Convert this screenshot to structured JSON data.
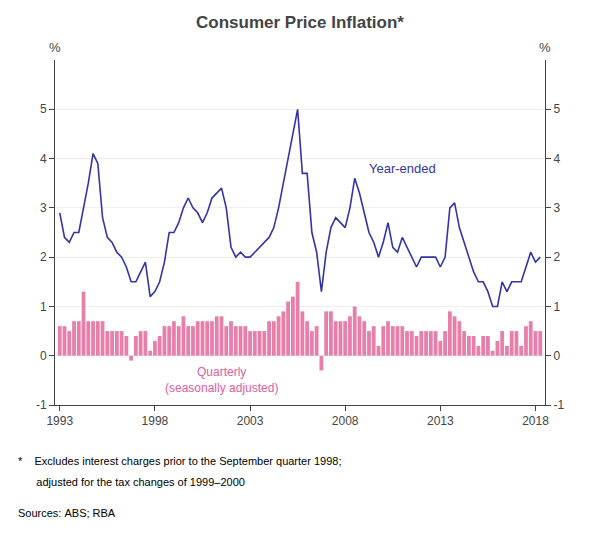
{
  "chart_data": {
    "type": "bar",
    "title": "Consumer Price Inflation*",
    "ylabel": "%",
    "y2label": "%",
    "annotations": [
      {
        "text": "Year-ended",
        "color": "#3333aa"
      },
      {
        "text": "Quarterly",
        "color": "#e060a0"
      },
      {
        "text": "(seasonally adjusted)",
        "color": "#e060a0"
      }
    ],
    "footnotes": [
      "*    Excludes interest charges prior to the September quarter 1998;",
      "      adjusted for the tax changes of 1999–2000",
      "Sources: ABS; RBA"
    ],
    "xlim": [
      1992.75,
      2018.5
    ],
    "xticks": [
      1993,
      1998,
      2003,
      2008,
      2013,
      2018
    ],
    "ylim": [
      -1,
      6
    ],
    "yticks": [
      -1,
      0,
      1,
      2,
      3,
      4,
      5
    ],
    "y2lim": [
      -1,
      6
    ],
    "y2ticks": [
      -1,
      0,
      1,
      2,
      3,
      4,
      5
    ],
    "grid": true,
    "x": [
      1993,
      1993.25,
      1993.5,
      1993.75,
      1994,
      1994.25,
      1994.5,
      1994.75,
      1995,
      1995.25,
      1995.5,
      1995.75,
      1996,
      1996.25,
      1996.5,
      1996.75,
      1997,
      1997.25,
      1997.5,
      1997.75,
      1998,
      1998.25,
      1998.5,
      1998.75,
      1999,
      1999.25,
      1999.5,
      1999.75,
      2000,
      2000.25,
      2000.5,
      2000.75,
      2001,
      2001.25,
      2001.5,
      2001.75,
      2002,
      2002.25,
      2002.5,
      2002.75,
      2003,
      2003.25,
      2003.5,
      2003.75,
      2004,
      2004.25,
      2004.5,
      2004.75,
      2005,
      2005.25,
      2005.5,
      2005.75,
      2006,
      2006.25,
      2006.5,
      2006.75,
      2007,
      2007.25,
      2007.5,
      2007.75,
      2008,
      2008.25,
      2008.5,
      2008.75,
      2009,
      2009.25,
      2009.5,
      2009.75,
      2010,
      2010.25,
      2010.5,
      2010.75,
      2011,
      2011.25,
      2011.5,
      2011.75,
      2012,
      2012.25,
      2012.5,
      2012.75,
      2013,
      2013.25,
      2013.5,
      2013.75,
      2014,
      2014.25,
      2014.5,
      2014.75,
      2015,
      2015.25,
      2015.5,
      2015.75,
      2016,
      2016.25,
      2016.5,
      2016.75,
      2017,
      2017.25,
      2017.5,
      2017.75,
      2018,
      2018.25
    ],
    "series": [
      {
        "type": "bar",
        "color": "#e87faa",
        "values": [
          0.6,
          0.6,
          0.5,
          0.7,
          0.7,
          1.3,
          0.7,
          0.7,
          0.7,
          0.7,
          0.5,
          0.5,
          0.5,
          0.5,
          0.4,
          -0.1,
          0.4,
          0.5,
          0.5,
          0.1,
          0.3,
          0.4,
          0.6,
          0.6,
          0.7,
          0.6,
          0.8,
          0.6,
          0.6,
          0.7,
          0.7,
          0.7,
          0.7,
          0.8,
          0.8,
          0.6,
          0.7,
          0.6,
          0.6,
          0.6,
          0.5,
          0.5,
          0.5,
          0.5,
          0.7,
          0.7,
          0.8,
          0.9,
          1.1,
          1.2,
          1.5,
          0.9,
          0.7,
          0.5,
          0.6,
          -0.3,
          0.9,
          0.9,
          0.7,
          0.7,
          0.7,
          0.8,
          1.0,
          0.8,
          0.7,
          0.5,
          0.6,
          0.2,
          0.6,
          0.7,
          0.6,
          0.6,
          0.6,
          0.5,
          0.5,
          0.4,
          0.5,
          0.5,
          0.5,
          0.5,
          0.3,
          0.5,
          0.9,
          0.8,
          0.7,
          0.5,
          0.4,
          0.4,
          0.2,
          0.4,
          0.4,
          0.1,
          0.3,
          0.5,
          0.2,
          0.5,
          0.5,
          0.2,
          0.6,
          0.7,
          0.5,
          0.5
        ]
      },
      {
        "type": "line",
        "color": "#3333aa",
        "values": [
          2.9,
          2.4,
          2.3,
          2.5,
          2.5,
          3.0,
          3.5,
          4.1,
          3.9,
          2.8,
          2.4,
          2.3,
          2.1,
          2.0,
          1.8,
          1.5,
          1.5,
          1.7,
          1.9,
          1.2,
          1.3,
          1.5,
          1.9,
          2.5,
          2.5,
          2.7,
          3.0,
          3.2,
          3.0,
          2.9,
          2.7,
          2.9,
          3.2,
          3.3,
          3.4,
          3.0,
          2.2,
          2.0,
          2.1,
          2.0,
          2.0,
          2.1,
          2.2,
          2.3,
          2.4,
          2.6,
          3.0,
          3.5,
          4.0,
          4.5,
          5.0,
          3.7,
          3.7,
          2.5,
          2.1,
          1.3,
          2.1,
          2.6,
          2.8,
          2.7,
          2.6,
          3.0,
          3.6,
          3.3,
          2.9,
          2.5,
          2.3,
          2.0,
          2.3,
          2.7,
          2.2,
          2.1,
          2.4,
          2.2,
          2.0,
          1.8,
          2.0,
          2.0,
          2.0,
          2.0,
          1.8,
          2.0,
          3.0,
          3.1,
          2.6,
          2.3,
          2.0,
          1.7,
          1.5,
          1.5,
          1.3,
          1.0,
          1.0,
          1.5,
          1.3,
          1.5,
          1.5,
          1.5,
          1.8,
          2.1,
          1.9,
          2.0
        ]
      }
    ]
  }
}
